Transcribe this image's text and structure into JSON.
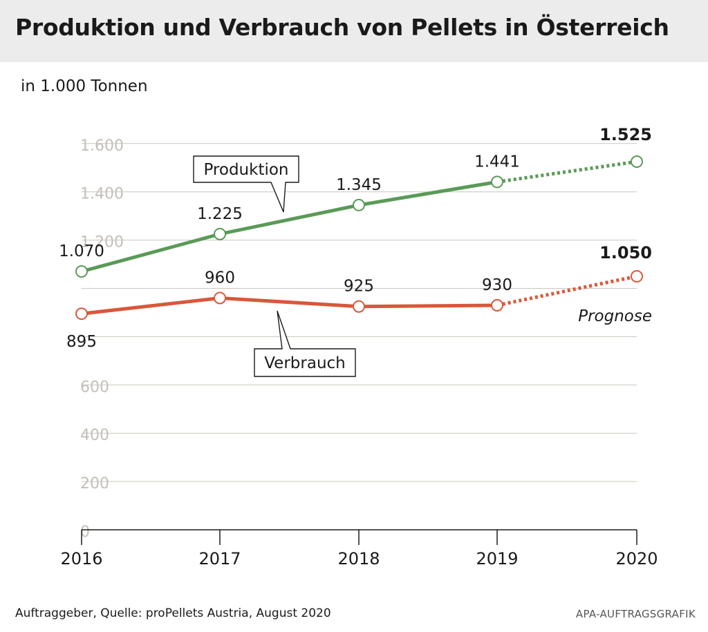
{
  "header": {
    "title": "Produktion und Verbrauch von Pellets in Österreich"
  },
  "unit_label": "in 1.000 Tonnen",
  "source": "Auftraggeber, Quelle: proPellets Austria, August 2020",
  "credit": "APA-AUFTRAGSGRAFIK",
  "forecast_label": "Prognose",
  "colors": {
    "produktion": "#5a9a57",
    "verbrauch": "#d9573a",
    "grid": "#c8c5bd",
    "tick": "#c2bfb6"
  },
  "chart_data": {
    "type": "line",
    "title": "Produktion und Verbrauch von Pellets in Österreich",
    "ylabel": "in 1.000 Tonnen",
    "xlabel": "",
    "x": [
      "2016",
      "2017",
      "2018",
      "2019",
      "2020"
    ],
    "ylim": [
      0,
      1600
    ],
    "yticks": [
      0,
      200,
      400,
      600,
      800,
      1000,
      1200,
      1400,
      1600
    ],
    "ytick_labels": [
      "0",
      "200",
      "400",
      "600",
      "",
      "",
      "1.200",
      "1.400",
      "1.600"
    ],
    "grid": true,
    "forecast_from_index": 3,
    "series": [
      {
        "name": "Produktion",
        "values": [
          1070,
          1225,
          1345,
          1441,
          1525
        ],
        "labels": [
          "1.070",
          "1.225",
          "1.345",
          "1.441",
          "1.525"
        ]
      },
      {
        "name": "Verbrauch",
        "values": [
          895,
          960,
          925,
          930,
          1050
        ],
        "labels": [
          "895",
          "960",
          "925",
          "930",
          "1.050"
        ]
      }
    ]
  }
}
